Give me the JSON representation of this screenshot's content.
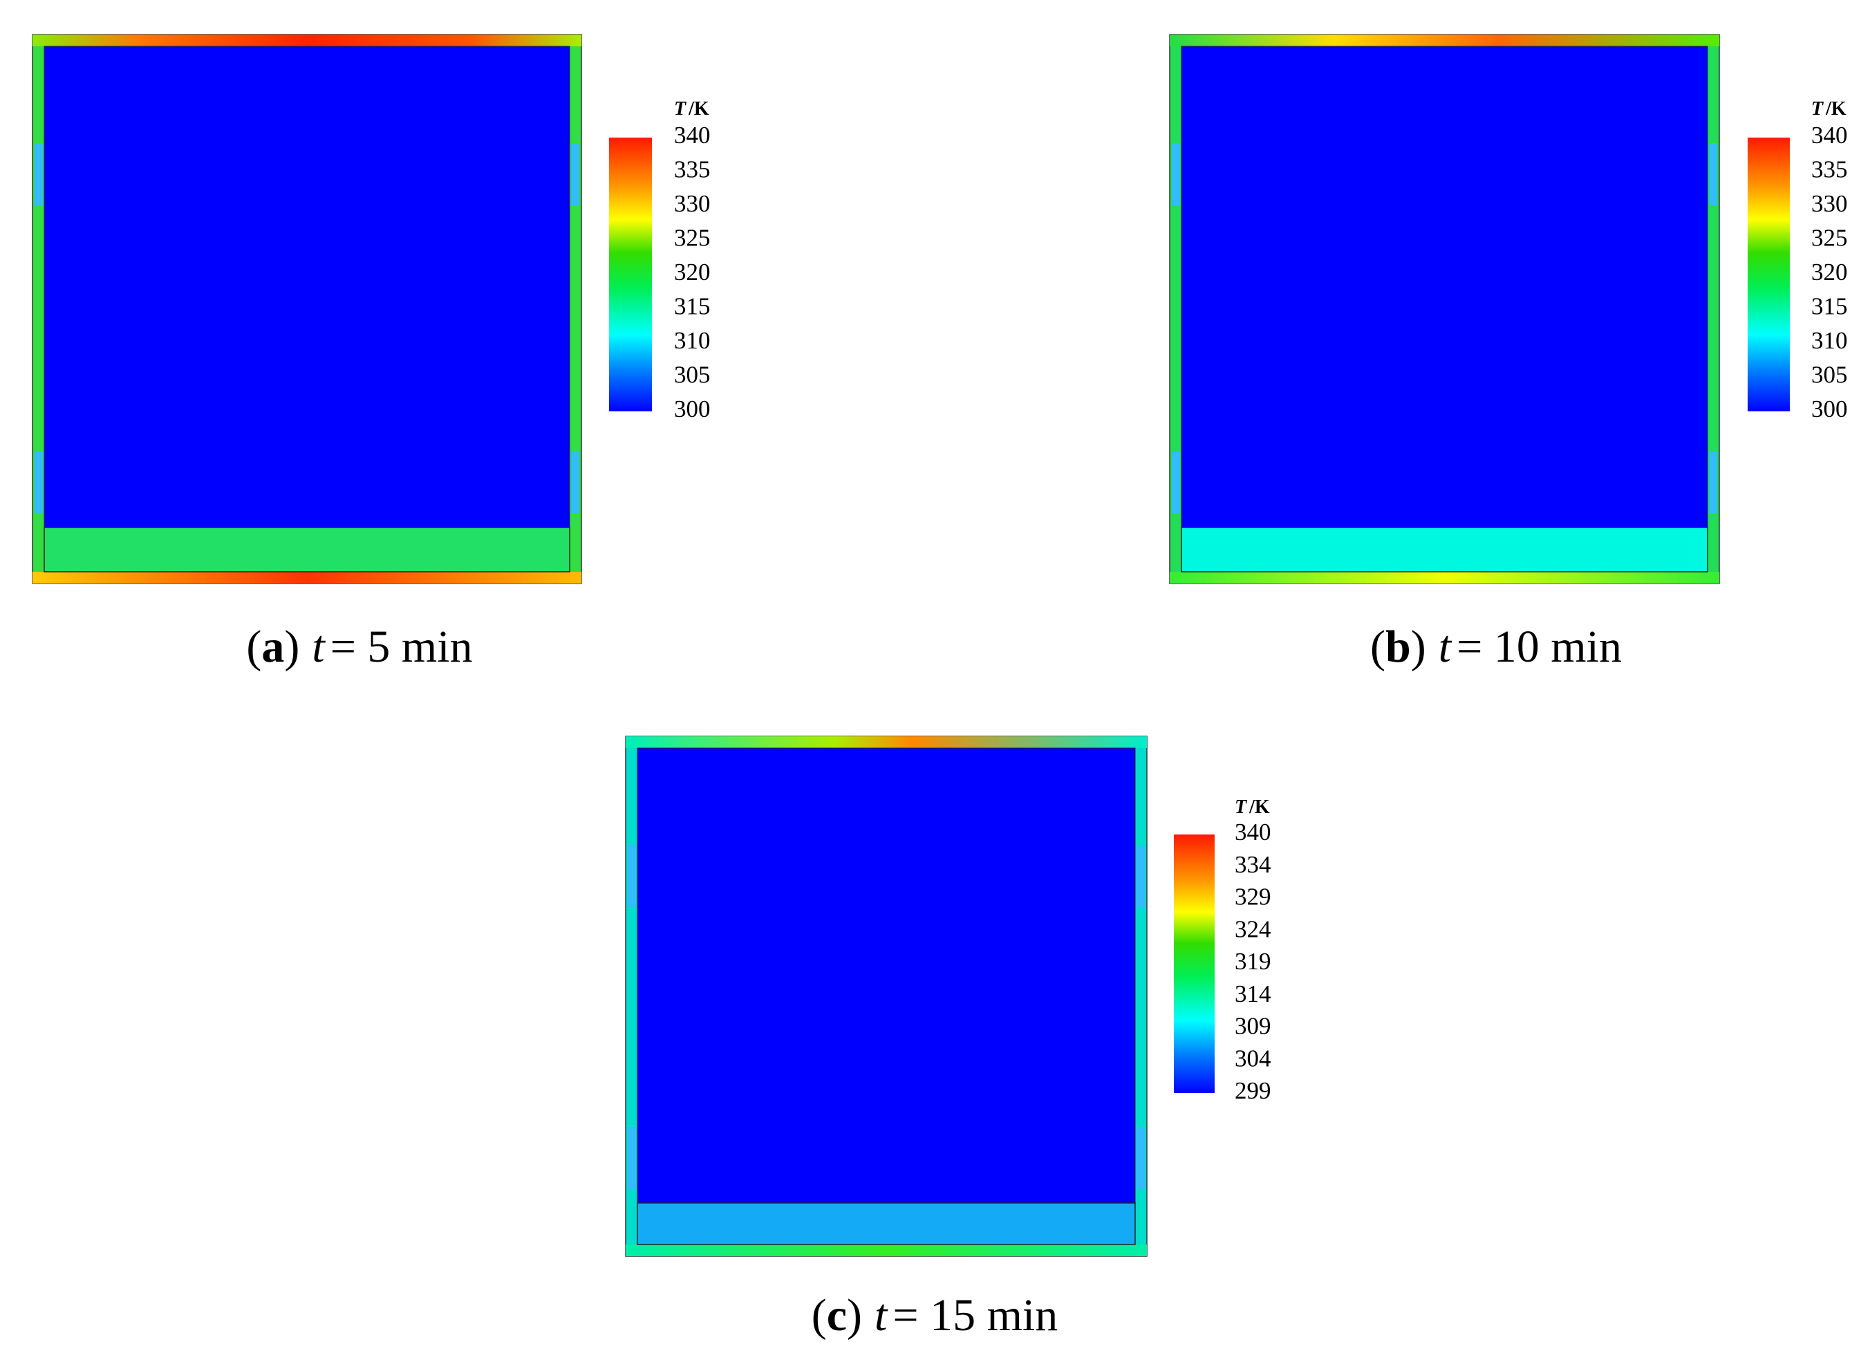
{
  "panels": [
    {
      "caption": {
        "open": "(",
        "label": "a",
        "close": ")",
        "variable": "t",
        "text": "= 5 min"
      },
      "colorbar": {
        "title_variable": "T",
        "title_unit": "/K",
        "ticks": [
          340,
          335,
          330,
          325,
          320,
          315,
          310,
          305,
          300
        ]
      }
    },
    {
      "caption": {
        "open": "(",
        "label": "b",
        "close": ")",
        "variable": "t",
        "text": "= 10 min"
      },
      "colorbar": {
        "title_variable": "T",
        "title_unit": "/K",
        "ticks": [
          340,
          335,
          330,
          325,
          320,
          315,
          310,
          305,
          300
        ]
      }
    },
    {
      "caption": {
        "open": "(",
        "label": "c",
        "close": ")",
        "variable": "t",
        "text": "= 15 min"
      },
      "colorbar": {
        "title_variable": "T",
        "title_unit": "/K",
        "ticks": [
          340,
          334,
          329,
          324,
          319,
          314,
          309,
          304,
          299
        ]
      }
    }
  ]
}
